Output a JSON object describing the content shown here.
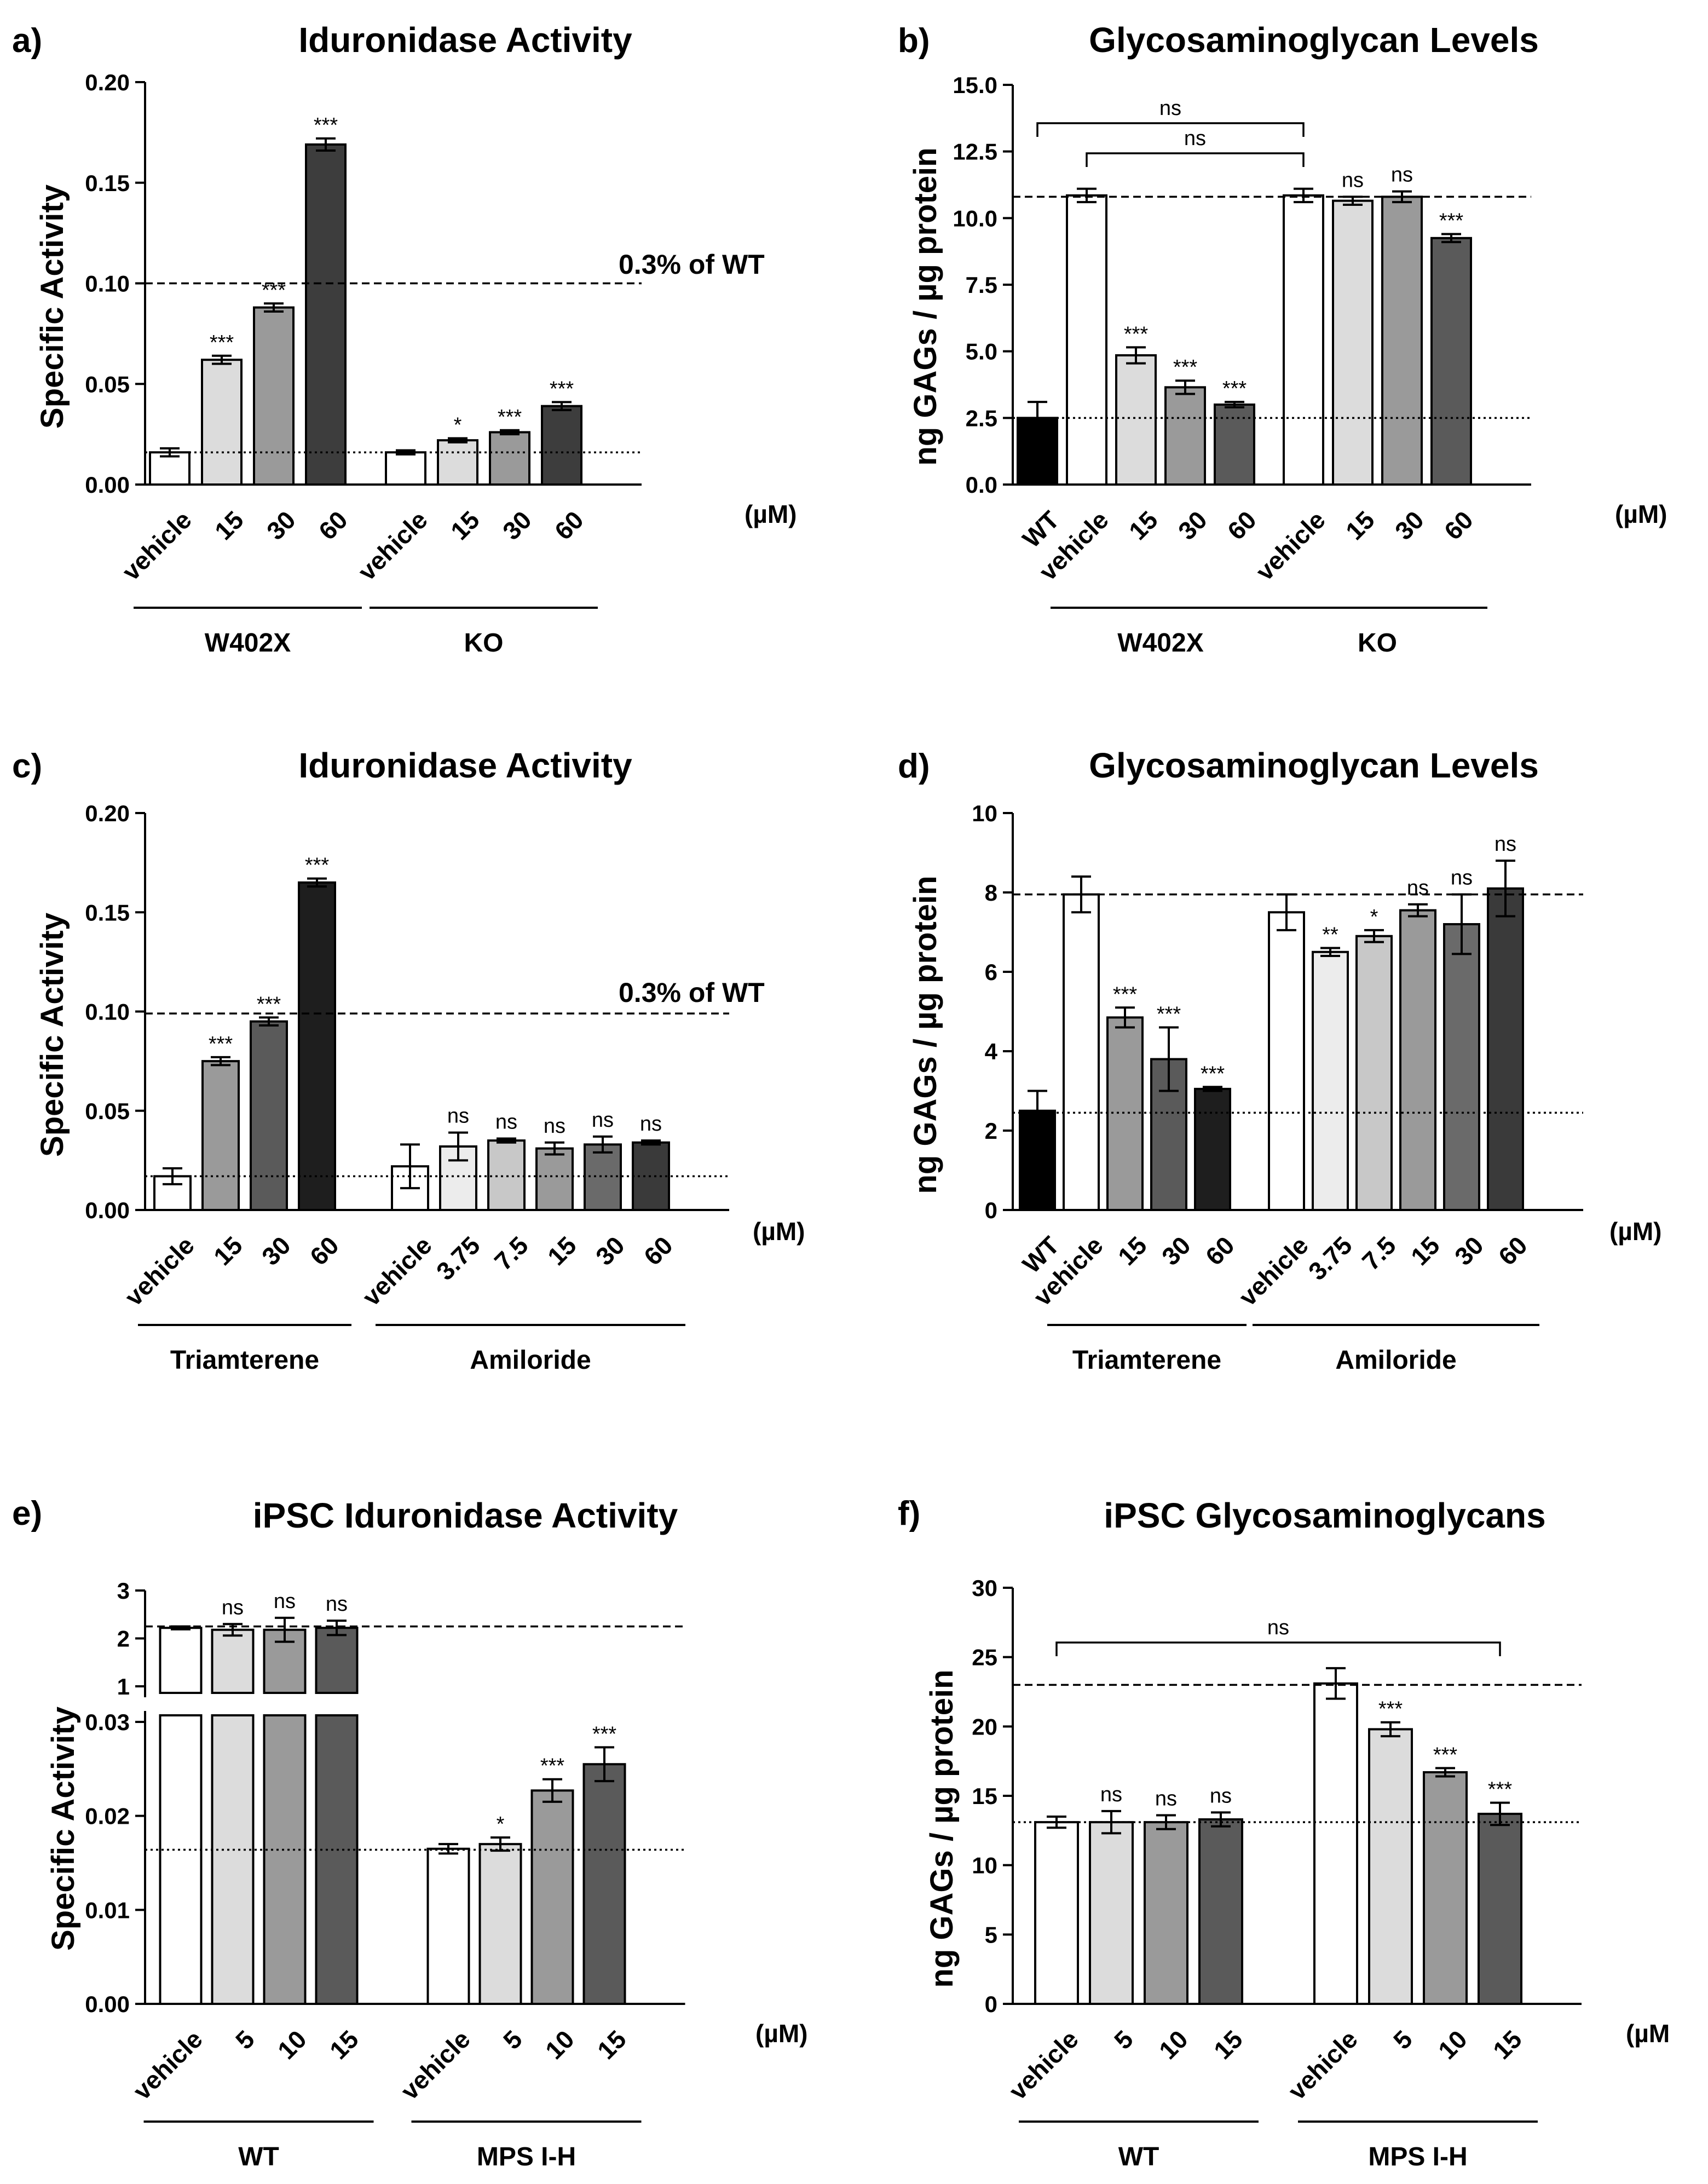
{
  "chart_data": [
    {
      "panel": "a)",
      "type": "bar",
      "title": "Iduronidase Activity",
      "ylabel": "Specific Activity",
      "unit_label": "(µM)",
      "ylim": [
        0,
        0.2
      ],
      "yticks": [
        "0.00",
        "0.05",
        "0.10",
        "0.15",
        "0.20"
      ],
      "bars": [
        {
          "label": "vehicle",
          "value": 0.016,
          "err": 0.002,
          "color": "#ffffff",
          "sig": "",
          "group": "W402X"
        },
        {
          "label": "15",
          "value": 0.062,
          "err": 0.002,
          "color": "#dcdcdc",
          "sig": "***",
          "group": "W402X"
        },
        {
          "label": "30",
          "value": 0.088,
          "err": 0.002,
          "color": "#9a9a9a",
          "sig": "***",
          "group": "W402X"
        },
        {
          "label": "60",
          "value": 0.169,
          "err": 0.003,
          "color": "#3d3d3d",
          "sig": "***",
          "group": "W402X"
        },
        {
          "label": "vehicle",
          "value": 0.016,
          "err": 0.001,
          "color": "#ffffff",
          "sig": "",
          "group": "KO"
        },
        {
          "label": "15",
          "value": 0.022,
          "err": 0.001,
          "color": "#dcdcdc",
          "sig": "*",
          "group": "KO"
        },
        {
          "label": "30",
          "value": 0.026,
          "err": 0.001,
          "color": "#9a9a9a",
          "sig": "***",
          "group": "KO"
        },
        {
          "label": "60",
          "value": 0.039,
          "err": 0.002,
          "color": "#3d3d3d",
          "sig": "***",
          "group": "KO"
        }
      ],
      "groups": [
        "W402X",
        "KO"
      ],
      "dashed_line": 0.1,
      "dashed_label": "0.3% of WT",
      "dotted_line": 0.016
    },
    {
      "panel": "b)",
      "type": "bar",
      "title": "Glycosaminoglycan Levels",
      "ylabel": "ng GAGs / µg protein",
      "unit_label": "(µM)",
      "ylim": [
        0,
        15
      ],
      "yticks": [
        "0.0",
        "2.5",
        "5.0",
        "7.5",
        "10.0",
        "12.5",
        "15.0"
      ],
      "bars": [
        {
          "label": "WT",
          "value": 2.5,
          "err": 0.6,
          "color": "#000000",
          "sig": "",
          "group": ""
        },
        {
          "label": "vehicle",
          "value": 10.85,
          "err": 0.25,
          "color": "#ffffff",
          "sig": "",
          "group": "W402X"
        },
        {
          "label": "15",
          "value": 4.85,
          "err": 0.3,
          "color": "#dcdcdc",
          "sig": "***",
          "group": "W402X"
        },
        {
          "label": "30",
          "value": 3.65,
          "err": 0.25,
          "color": "#9a9a9a",
          "sig": "***",
          "group": "W402X"
        },
        {
          "label": "60",
          "value": 3.0,
          "err": 0.1,
          "color": "#5a5a5a",
          "sig": "***",
          "group": "W402X"
        },
        {
          "label": "vehicle",
          "value": 10.85,
          "err": 0.25,
          "color": "#ffffff",
          "sig": "",
          "group": "KO"
        },
        {
          "label": "15",
          "value": 10.65,
          "err": 0.15,
          "color": "#dcdcdc",
          "sig": "ns",
          "group": "KO"
        },
        {
          "label": "30",
          "value": 10.8,
          "err": 0.2,
          "color": "#9a9a9a",
          "sig": "ns",
          "group": "KO"
        },
        {
          "label": "60",
          "value": 9.25,
          "err": 0.15,
          "color": "#5a5a5a",
          "sig": "***",
          "group": "KO"
        }
      ],
      "groups": [
        "W402X",
        "KO"
      ],
      "dashed_line": 10.8,
      "dotted_line": 2.5,
      "brackets": [
        {
          "from": 0,
          "to": 5,
          "label": "ns"
        },
        {
          "from": 1,
          "to": 5,
          "label": "ns"
        }
      ]
    },
    {
      "panel": "c)",
      "type": "bar",
      "title": "Iduronidase Activity",
      "ylabel": "Specific Activity",
      "unit_label": "(µM)",
      "ylim": [
        0,
        0.2
      ],
      "yticks": [
        "0.00",
        "0.05",
        "0.10",
        "0.15",
        "0.20"
      ],
      "bars": [
        {
          "label": "vehicle",
          "value": 0.017,
          "err": 0.004,
          "color": "#ffffff",
          "sig": "",
          "group": "Triamterene"
        },
        {
          "label": "15",
          "value": 0.075,
          "err": 0.002,
          "color": "#9a9a9a",
          "sig": "***",
          "group": "Triamterene"
        },
        {
          "label": "30",
          "value": 0.095,
          "err": 0.002,
          "color": "#5a5a5a",
          "sig": "***",
          "group": "Triamterene"
        },
        {
          "label": "60",
          "value": 0.165,
          "err": 0.002,
          "color": "#1e1e1e",
          "sig": "***",
          "group": "Triamterene"
        },
        {
          "label": "vehicle",
          "value": 0.022,
          "err": 0.011,
          "color": "#ffffff",
          "sig": "",
          "group": "Amiloride"
        },
        {
          "label": "3.75",
          "value": 0.032,
          "err": 0.007,
          "color": "#ececec",
          "sig": "ns",
          "group": "Amiloride"
        },
        {
          "label": "7.5",
          "value": 0.035,
          "err": 0.001,
          "color": "#c8c8c8",
          "sig": "ns",
          "group": "Amiloride"
        },
        {
          "label": "15",
          "value": 0.031,
          "err": 0.003,
          "color": "#9a9a9a",
          "sig": "ns",
          "group": "Amiloride"
        },
        {
          "label": "30",
          "value": 0.033,
          "err": 0.004,
          "color": "#6a6a6a",
          "sig": "ns",
          "group": "Amiloride"
        },
        {
          "label": "60",
          "value": 0.034,
          "err": 0.001,
          "color": "#3a3a3a",
          "sig": "ns",
          "group": "Amiloride"
        }
      ],
      "groups": [
        "Triamterene",
        "Amiloride"
      ],
      "dashed_line": 0.099,
      "dashed_label": "0.3% of WT",
      "dotted_line": 0.017
    },
    {
      "panel": "d)",
      "type": "bar",
      "title": "Glycosaminoglycan Levels",
      "ylabel": "ng GAGs / µg protein",
      "unit_label": "(µM)",
      "ylim": [
        0,
        10
      ],
      "yticks": [
        "0",
        "2",
        "4",
        "6",
        "8",
        "10"
      ],
      "bars": [
        {
          "label": "WT",
          "value": 2.5,
          "err": 0.5,
          "color": "#000000",
          "sig": "",
          "group": ""
        },
        {
          "label": "vehicle",
          "value": 7.95,
          "err": 0.45,
          "color": "#ffffff",
          "sig": "",
          "group": "Triamterene"
        },
        {
          "label": "15",
          "value": 4.85,
          "err": 0.25,
          "color": "#9a9a9a",
          "sig": "***",
          "group": "Triamterene"
        },
        {
          "label": "30",
          "value": 3.8,
          "err": 0.8,
          "color": "#5a5a5a",
          "sig": "***",
          "group": "Triamterene"
        },
        {
          "label": "60",
          "value": 3.05,
          "err": 0.05,
          "color": "#1e1e1e",
          "sig": "***",
          "group": "Triamterene"
        },
        {
          "label": "vehicle",
          "value": 7.5,
          "err": 0.45,
          "color": "#ffffff",
          "sig": "",
          "group": "Amiloride"
        },
        {
          "label": "3.75",
          "value": 6.5,
          "err": 0.1,
          "color": "#ececec",
          "sig": "**",
          "group": "Amiloride"
        },
        {
          "label": "7.5",
          "value": 6.9,
          "err": 0.15,
          "color": "#c8c8c8",
          "sig": "*",
          "group": "Amiloride"
        },
        {
          "label": "15",
          "value": 7.55,
          "err": 0.15,
          "color": "#9a9a9a",
          "sig": "ns",
          "group": "Amiloride"
        },
        {
          "label": "30",
          "value": 7.2,
          "err": 0.75,
          "color": "#6a6a6a",
          "sig": "ns",
          "group": "Amiloride"
        },
        {
          "label": "60",
          "value": 8.1,
          "err": 0.7,
          "color": "#3a3a3a",
          "sig": "ns",
          "group": "Amiloride"
        }
      ],
      "groups": [
        "Triamterene",
        "Amiloride"
      ],
      "dashed_line": 7.95,
      "dotted_line": 2.45
    },
    {
      "panel": "e)",
      "type": "bar",
      "title": "iPSC Iduronidase  Activity",
      "ylabel": "Specific Activity",
      "unit_label": "(µM)",
      "broken_axis": {
        "upper_range": [
          1,
          3
        ],
        "lower_range": [
          0,
          0.03
        ]
      },
      "yticks_upper": [
        "1",
        "2",
        "3"
      ],
      "yticks_lower": [
        "0.00",
        "0.01",
        "0.02",
        "0.03"
      ],
      "bars": [
        {
          "label": "vehicle",
          "value": 2.22,
          "err": 0.03,
          "color": "#ffffff",
          "sig": "",
          "group": "WT"
        },
        {
          "label": "5",
          "value": 2.18,
          "err": 0.12,
          "color": "#dcdcdc",
          "sig": "ns",
          "group": "WT"
        },
        {
          "label": "10",
          "value": 2.18,
          "err": 0.25,
          "color": "#9a9a9a",
          "sig": "ns",
          "group": "WT"
        },
        {
          "label": "15",
          "value": 2.22,
          "err": 0.15,
          "color": "#5a5a5a",
          "sig": "ns",
          "group": "WT"
        },
        {
          "label": "vehicle",
          "value": 0.0165,
          "err": 0.0005,
          "color": "#ffffff",
          "sig": "",
          "group": "MPS I-H"
        },
        {
          "label": "5",
          "value": 0.017,
          "err": 0.0007,
          "color": "#dcdcdc",
          "sig": "*",
          "group": "MPS I-H"
        },
        {
          "label": "10",
          "value": 0.0227,
          "err": 0.0012,
          "color": "#9a9a9a",
          "sig": "***",
          "group": "MPS I-H"
        },
        {
          "label": "15",
          "value": 0.0255,
          "err": 0.0018,
          "color": "#5a5a5a",
          "sig": "***",
          "group": "MPS I-H"
        }
      ],
      "groups": [
        "WT",
        "MPS I-H"
      ],
      "dashed_line": 2.25,
      "dotted_line": 0.0164
    },
    {
      "panel": "f)",
      "type": "bar",
      "title": "iPSC Glycosaminoglycans",
      "ylabel": "ng GAGs / µg protein",
      "unit_label": "(µM",
      "ylim": [
        0,
        30
      ],
      "yticks": [
        "0",
        "5",
        "10",
        "15",
        "20",
        "25",
        "30"
      ],
      "bars": [
        {
          "label": "vehicle",
          "value": 13.1,
          "err": 0.4,
          "color": "#ffffff",
          "sig": "",
          "group": "WT"
        },
        {
          "label": "5",
          "value": 13.1,
          "err": 0.8,
          "color": "#dcdcdc",
          "sig": "ns",
          "group": "WT"
        },
        {
          "label": "10",
          "value": 13.1,
          "err": 0.5,
          "color": "#9a9a9a",
          "sig": "ns",
          "group": "WT"
        },
        {
          "label": "15",
          "value": 13.3,
          "err": 0.5,
          "color": "#5a5a5a",
          "sig": "ns",
          "group": "WT"
        },
        {
          "label": "vehicle",
          "value": 23.1,
          "err": 1.1,
          "color": "#ffffff",
          "sig": "",
          "group": "MPS I-H"
        },
        {
          "label": "5",
          "value": 19.8,
          "err": 0.5,
          "color": "#dcdcdc",
          "sig": "***",
          "group": "MPS I-H"
        },
        {
          "label": "10",
          "value": 16.7,
          "err": 0.3,
          "color": "#9a9a9a",
          "sig": "***",
          "group": "MPS I-H"
        },
        {
          "label": "15",
          "value": 13.7,
          "err": 0.8,
          "color": "#5a5a5a",
          "sig": "***",
          "group": "MPS I-H"
        }
      ],
      "groups": [
        "WT",
        "MPS I-H"
      ],
      "dashed_line": 23.0,
      "dotted_line": 13.1,
      "brackets": [
        {
          "from": 0,
          "to": 7,
          "label": "ns"
        }
      ]
    }
  ]
}
